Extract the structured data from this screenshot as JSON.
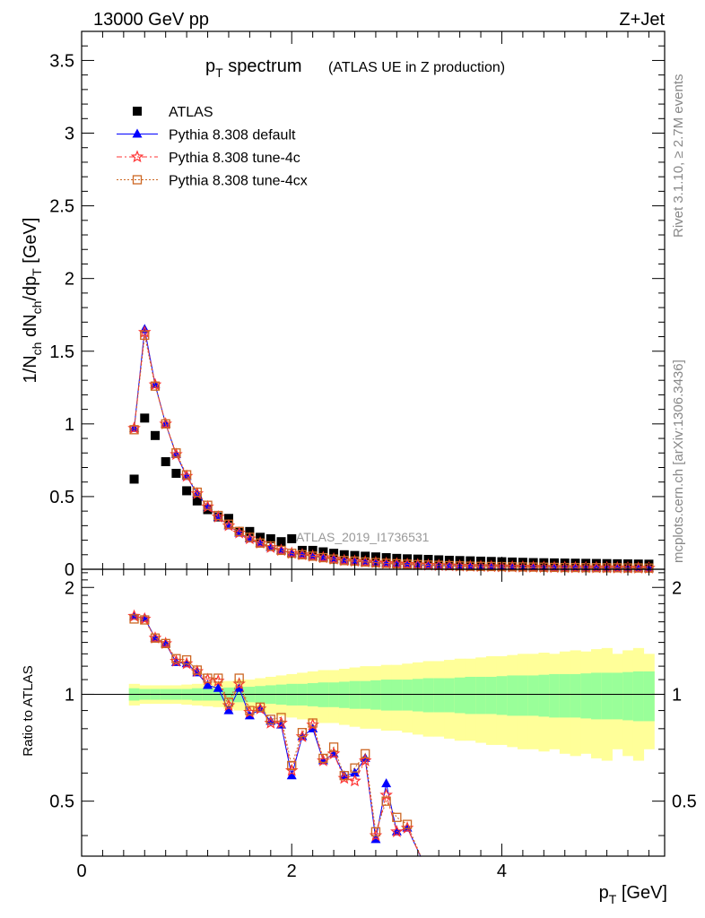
{
  "header": {
    "left": "13000 GeV pp",
    "right": "Z+Jet"
  },
  "side_labels": {
    "rivet": "Rivet 3.1.10, ≥ 2.7M events",
    "mcplots": "mcplots.cern.ch [arXiv:1306.3436]"
  },
  "title": {
    "main": "p",
    "main_sub": "T",
    "main_rest": " spectrum",
    "paren": "(ATLAS UE in Z production)"
  },
  "watermark": "ATLAS_2019_I1736531",
  "colors": {
    "data": "#000000",
    "default": "#0000ff",
    "tune4c": "#ff3333",
    "tune4cx": "#cc6622",
    "band_stat": "#99ff99",
    "band_total": "#ffff99"
  },
  "chart_data": [
    {
      "type": "scatter",
      "panel": "main",
      "xlabel": "p_T [GeV]",
      "ylabel": "1/N_ch dN_ch/dp_T [GeV]",
      "xlim": [
        0,
        5.55
      ],
      "ylim": [
        0,
        3.7
      ],
      "yticks": [
        0,
        0.5,
        1,
        1.5,
        2,
        2.5,
        3,
        3.5
      ],
      "ytick_labels": [
        "0",
        "0.5",
        "1",
        "1.5",
        "2",
        "2.5",
        "3",
        "3.5"
      ],
      "legend_position": "top-left",
      "x": [
        0.5,
        0.6,
        0.7,
        0.8,
        0.9,
        1.0,
        1.1,
        1.2,
        1.3,
        1.4,
        1.5,
        1.6,
        1.7,
        1.8,
        1.9,
        2.0,
        2.1,
        2.2,
        2.3,
        2.4,
        2.5,
        2.6,
        2.7,
        2.8,
        2.9,
        3.0,
        3.1,
        3.2,
        3.3,
        3.4,
        3.5,
        3.6,
        3.7,
        3.8,
        3.9,
        4.0,
        4.1,
        4.2,
        4.3,
        4.4,
        4.5,
        4.6,
        4.7,
        4.8,
        4.9,
        5.0,
        5.1,
        5.2,
        5.3,
        5.4
      ],
      "series": [
        {
          "name": "ATLAS",
          "marker": "square",
          "values": [
            0.62,
            1.04,
            0.92,
            0.74,
            0.66,
            0.54,
            0.47,
            0.41,
            0.36,
            0.35,
            0.26,
            0.26,
            0.22,
            0.21,
            0.19,
            0.21,
            0.13,
            0.13,
            0.12,
            0.11,
            0.1,
            0.095,
            0.09,
            0.085,
            0.08,
            0.075,
            0.072,
            0.07,
            0.068,
            0.065,
            0.062,
            0.06,
            0.058,
            0.056,
            0.054,
            0.052,
            0.05,
            0.048,
            0.046,
            0.045,
            0.044,
            0.043,
            0.042,
            0.041,
            0.04,
            0.039,
            0.038,
            0.037,
            0.036,
            0.035
          ]
        },
        {
          "name": "Pythia 8.308 default",
          "marker": "triangle",
          "values": [
            0.97,
            1.65,
            1.27,
            1.0,
            0.79,
            0.64,
            0.52,
            0.43,
            0.36,
            0.3,
            0.25,
            0.21,
            0.18,
            0.15,
            0.13,
            0.11,
            0.1,
            0.09,
            0.08,
            0.07,
            0.06,
            0.055,
            0.05,
            0.045,
            0.04,
            0.037,
            0.034,
            0.031,
            0.028,
            0.026,
            0.024,
            0.022,
            0.02,
            0.019,
            0.018,
            0.017,
            0.016,
            0.015,
            0.014,
            0.013,
            0.012,
            0.012,
            0.011,
            0.011,
            0.01,
            0.01,
            0.009,
            0.009,
            0.008,
            0.008
          ]
        },
        {
          "name": "Pythia 8.308 tune-4c",
          "marker": "star",
          "values": [
            0.97,
            1.63,
            1.27,
            1.0,
            0.79,
            0.64,
            0.52,
            0.43,
            0.36,
            0.3,
            0.25,
            0.21,
            0.18,
            0.15,
            0.13,
            0.11,
            0.1,
            0.09,
            0.08,
            0.07,
            0.06,
            0.055,
            0.05,
            0.045,
            0.04,
            0.037,
            0.034,
            0.031,
            0.028,
            0.026,
            0.024,
            0.022,
            0.02,
            0.019,
            0.018,
            0.017,
            0.016,
            0.015,
            0.014,
            0.013,
            0.012,
            0.012,
            0.011,
            0.011,
            0.01,
            0.01,
            0.009,
            0.009,
            0.008,
            0.008
          ]
        },
        {
          "name": "Pythia 8.308 tune-4cx",
          "marker": "open-square",
          "values": [
            0.96,
            1.61,
            1.26,
            1.0,
            0.8,
            0.65,
            0.53,
            0.44,
            0.37,
            0.31,
            0.26,
            0.22,
            0.18,
            0.16,
            0.13,
            0.11,
            0.1,
            0.09,
            0.08,
            0.07,
            0.06,
            0.056,
            0.05,
            0.046,
            0.041,
            0.038,
            0.035,
            0.032,
            0.029,
            0.027,
            0.025,
            0.023,
            0.021,
            0.02,
            0.019,
            0.018,
            0.017,
            0.016,
            0.015,
            0.014,
            0.013,
            0.012,
            0.012,
            0.011,
            0.011,
            0.01,
            0.01,
            0.009,
            0.009,
            0.008
          ]
        }
      ]
    },
    {
      "type": "scatter",
      "panel": "ratio",
      "xlabel": "p_T [GeV]",
      "ylabel": "Ratio to ATLAS",
      "xlim": [
        0,
        5.55
      ],
      "ylim": [
        0.35,
        2.25
      ],
      "xticks": [
        0,
        2,
        4
      ],
      "xtick_labels": [
        "0",
        "2",
        "4"
      ],
      "yticks": [
        0.5,
        1,
        2
      ],
      "ytick_labels": [
        "0.5",
        "1",
        "2"
      ],
      "band_x": [
        0.5,
        0.6,
        0.7,
        0.8,
        0.9,
        1.0,
        1.1,
        1.2,
        1.3,
        1.4,
        1.5,
        1.6,
        1.7,
        1.8,
        1.9,
        2.0,
        2.1,
        2.2,
        2.3,
        2.4,
        2.5,
        2.6,
        2.7,
        2.8,
        2.9,
        3.0,
        3.1,
        3.2,
        3.3,
        3.4,
        3.5,
        3.6,
        3.7,
        3.8,
        3.9,
        4.0,
        4.1,
        4.2,
        4.3,
        4.4,
        4.5,
        4.6,
        4.7,
        4.8,
        4.9,
        5.0,
        5.1,
        5.2,
        5.3,
        5.4
      ],
      "band_stat": [
        0.04,
        0.035,
        0.035,
        0.035,
        0.035,
        0.035,
        0.04,
        0.04,
        0.04,
        0.045,
        0.05,
        0.05,
        0.055,
        0.06,
        0.065,
        0.07,
        0.07,
        0.075,
        0.08,
        0.08,
        0.085,
        0.09,
        0.09,
        0.095,
        0.1,
        0.1,
        0.1,
        0.105,
        0.11,
        0.11,
        0.11,
        0.115,
        0.12,
        0.12,
        0.12,
        0.125,
        0.13,
        0.13,
        0.13,
        0.135,
        0.14,
        0.14,
        0.14,
        0.145,
        0.15,
        0.15,
        0.15,
        0.155,
        0.16,
        0.16
      ],
      "band_total": [
        0.07,
        0.06,
        0.06,
        0.06,
        0.06,
        0.065,
        0.07,
        0.075,
        0.08,
        0.09,
        0.1,
        0.1,
        0.11,
        0.12,
        0.13,
        0.14,
        0.15,
        0.16,
        0.17,
        0.17,
        0.18,
        0.19,
        0.2,
        0.2,
        0.21,
        0.21,
        0.22,
        0.23,
        0.24,
        0.24,
        0.25,
        0.26,
        0.26,
        0.27,
        0.28,
        0.28,
        0.29,
        0.3,
        0.3,
        0.31,
        0.3,
        0.32,
        0.33,
        0.32,
        0.34,
        0.35,
        0.3,
        0.33,
        0.35,
        0.3
      ],
      "series": [
        {
          "name": "Pythia 8.308 default",
          "values": [
            1.66,
            1.64,
            1.44,
            1.39,
            1.23,
            1.22,
            1.15,
            1.06,
            1.04,
            0.9,
            1.04,
            0.87,
            0.91,
            0.84,
            0.82,
            0.59,
            0.76,
            0.8,
            0.65,
            0.68,
            0.59,
            0.6,
            0.66,
            0.39,
            0.56,
            0.41,
            0.42
          ]
        },
        {
          "name": "Pythia 8.308 tune-4c",
          "values": [
            1.66,
            1.63,
            1.44,
            1.39,
            1.24,
            1.22,
            1.16,
            1.1,
            1.09,
            0.93,
            1.07,
            0.89,
            0.91,
            0.83,
            0.83,
            0.61,
            0.76,
            0.82,
            0.65,
            0.68,
            0.58,
            0.57,
            0.65,
            0.4,
            0.52,
            0.41,
            0.42
          ]
        },
        {
          "name": "Pythia 8.308 tune-4cx",
          "values": [
            1.63,
            1.62,
            1.44,
            1.39,
            1.26,
            1.25,
            1.17,
            1.11,
            1.11,
            0.95,
            1.11,
            0.9,
            0.92,
            0.85,
            0.86,
            0.63,
            0.78,
            0.83,
            0.66,
            0.71,
            0.59,
            0.62,
            0.68,
            0.41,
            0.5,
            0.45,
            0.43
          ]
        }
      ]
    }
  ]
}
